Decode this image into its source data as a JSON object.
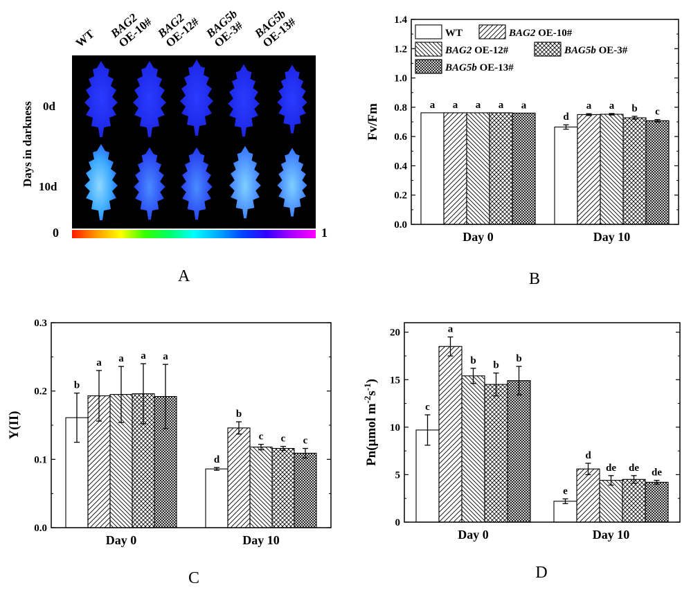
{
  "panel_a": {
    "letter": "A",
    "columns": [
      {
        "gene": "",
        "line": "WT"
      },
      {
        "gene": "BAG2",
        "line": "OE-10#"
      },
      {
        "gene": "BAG2",
        "line": "OE-12#"
      },
      {
        "gene": "BAG5b",
        "line": "OE-3#"
      },
      {
        "gene": "BAG5b",
        "line": "OE-13#"
      }
    ],
    "rows": [
      "0d",
      "10d"
    ],
    "ylabel": "Days in darkness",
    "colorbar_min": "0",
    "colorbar_max": "1"
  },
  "legend": {
    "entries": [
      {
        "gene": "",
        "text": "WT"
      },
      {
        "gene": "BAG2",
        "text": " OE-10#"
      },
      {
        "gene": "BAG2",
        "text": " OE-12#"
      },
      {
        "gene": "BAG5b",
        "text": " OE-3#"
      },
      {
        "gene": "BAG5b",
        "text": " OE-13#"
      }
    ]
  },
  "chart_data": [
    {
      "panel": "B",
      "type": "bar",
      "ylabel": "Fv/Fm",
      "ylim": [
        0,
        1.4
      ],
      "yticks": [
        "0.0",
        "0.2",
        "0.4",
        "0.6",
        "0.8",
        "1.0",
        "1.2",
        "1.4"
      ],
      "categories": [
        "Day 0",
        "Day 10"
      ],
      "series": [
        {
          "name": "WT",
          "values": [
            0.762,
            0.665
          ],
          "errors": [
            0.0,
            0.015
          ],
          "letters": [
            "a",
            "d"
          ]
        },
        {
          "name": "BAG2 OE-10#",
          "values": [
            0.762,
            0.75
          ],
          "errors": [
            0.0,
            0.006
          ],
          "letters": [
            "a",
            "a"
          ]
        },
        {
          "name": "BAG2 OE-12#",
          "values": [
            0.762,
            0.752
          ],
          "errors": [
            0.0,
            0.005
          ],
          "letters": [
            "a",
            "a"
          ]
        },
        {
          "name": "BAG5b OE-3#",
          "values": [
            0.762,
            0.728
          ],
          "errors": [
            0.0,
            0.01
          ],
          "letters": [
            "a",
            "b"
          ]
        },
        {
          "name": "BAG5b OE-13#",
          "values": [
            0.76,
            0.708
          ],
          "errors": [
            0.0,
            0.008
          ],
          "letters": [
            "a",
            "c"
          ]
        }
      ]
    },
    {
      "panel": "C",
      "type": "bar",
      "ylabel": "Y(II)",
      "ylim": [
        0,
        0.3
      ],
      "yticks": [
        "0.0",
        "0.1",
        "0.2",
        "0.3"
      ],
      "categories": [
        "Day 0",
        "Day 10"
      ],
      "series": [
        {
          "name": "WT",
          "values": [
            0.161,
            0.086
          ],
          "errors": [
            0.036,
            0.002
          ],
          "letters": [
            "b",
            "d"
          ]
        },
        {
          "name": "BAG2 OE-10#",
          "values": [
            0.193,
            0.146
          ],
          "errors": [
            0.037,
            0.009
          ],
          "letters": [
            "a",
            "b"
          ]
        },
        {
          "name": "BAG2 OE-12#",
          "values": [
            0.195,
            0.118
          ],
          "errors": [
            0.041,
            0.004
          ],
          "letters": [
            "a",
            "c"
          ]
        },
        {
          "name": "BAG5b OE-3#",
          "values": [
            0.196,
            0.116
          ],
          "errors": [
            0.044,
            0.003
          ],
          "letters": [
            "a",
            "c"
          ]
        },
        {
          "name": "BAG5b OE-13#",
          "values": [
            0.192,
            0.109
          ],
          "errors": [
            0.047,
            0.007
          ],
          "letters": [
            "a",
            "c"
          ]
        }
      ]
    },
    {
      "panel": "D",
      "type": "bar",
      "ylabel": "Pn(μmol m⁻²s⁻¹)",
      "ylim": [
        0,
        21
      ],
      "yticks": [
        "0",
        "5",
        "10",
        "15",
        "20"
      ],
      "categories": [
        "Day 0",
        "Day 10"
      ],
      "series": [
        {
          "name": "WT",
          "values": [
            9.7,
            2.2
          ],
          "errors": [
            1.6,
            0.25
          ],
          "letters": [
            "c",
            "e"
          ]
        },
        {
          "name": "BAG2 OE-10#",
          "values": [
            18.5,
            5.6
          ],
          "errors": [
            1.0,
            0.6
          ],
          "letters": [
            "a",
            "d"
          ]
        },
        {
          "name": "BAG2 OE-12#",
          "values": [
            15.4,
            4.4
          ],
          "errors": [
            0.8,
            0.5
          ],
          "letters": [
            "b",
            "de"
          ]
        },
        {
          "name": "BAG5b OE-3#",
          "values": [
            14.5,
            4.5
          ],
          "errors": [
            1.2,
            0.4
          ],
          "letters": [
            "b",
            "de"
          ]
        },
        {
          "name": "BAG5b OE-13#",
          "values": [
            14.9,
            4.2
          ],
          "errors": [
            1.5,
            0.2
          ],
          "letters": [
            "b",
            "de"
          ]
        }
      ]
    }
  ]
}
